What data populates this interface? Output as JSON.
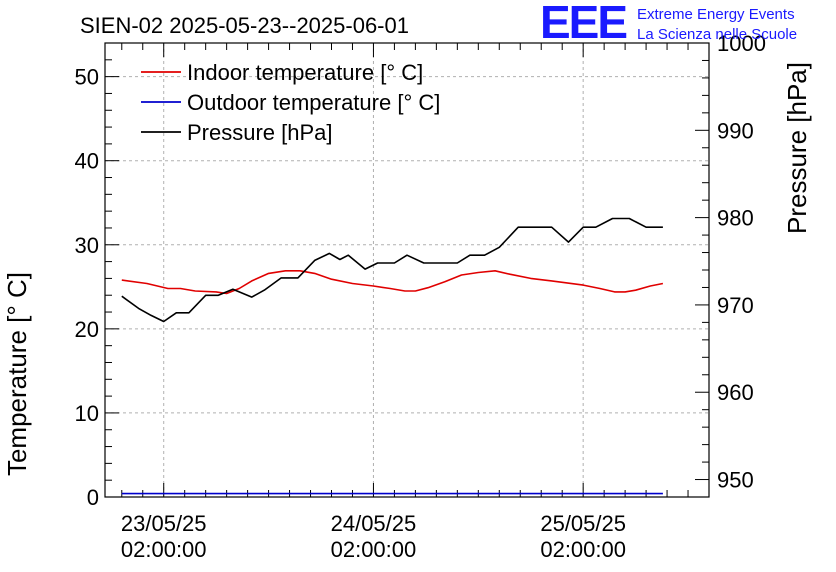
{
  "header": {
    "title": "SIEN-02 2025-05-23--2025-06-01",
    "logo_text": "EEE",
    "brand_line1": "Extreme Energy Events",
    "brand_line2": "La Scienza nelle Scuole"
  },
  "colors": {
    "indoor": "#e00000",
    "outdoor": "#0000cc",
    "pressure": "#000000",
    "grid": "#b0b0b0",
    "logo": "#1a1aff"
  },
  "chart_data": {
    "type": "line",
    "title": "SIEN-02 2025-05-23--2025-06-01",
    "ylabel": "Temperature [° C]",
    "y2label": "Pressure [hPa]",
    "xlabel": "",
    "ylim": [
      0,
      54
    ],
    "y2lim": [
      948,
      1000
    ],
    "xlim": [
      -0.28,
      2.6
    ],
    "yticks": [
      0,
      10,
      20,
      30,
      40,
      50
    ],
    "y2ticks": [
      950,
      960,
      970,
      980,
      990,
      1000
    ],
    "xticks": [
      {
        "x": 0,
        "line1": "23/05/25",
        "line2": "02:00:00"
      },
      {
        "x": 1,
        "line1": "24/05/25",
        "line2": "02:00:00"
      },
      {
        "x": 2,
        "line1": "25/05/25",
        "line2": "02:00:00"
      }
    ],
    "grid": true,
    "legend_position": "top-left",
    "series": [
      {
        "name": "Indoor temperature [° C]",
        "axis": "left",
        "color": "#e00000",
        "x": [
          -0.2,
          -0.08,
          0.02,
          0.08,
          0.15,
          0.25,
          0.3,
          0.36,
          0.42,
          0.5,
          0.58,
          0.65,
          0.72,
          0.8,
          0.9,
          1.0,
          1.08,
          1.15,
          1.2,
          1.26,
          1.34,
          1.42,
          1.5,
          1.58,
          1.65,
          1.75,
          1.85,
          2.0,
          2.08,
          2.15,
          2.2,
          2.25,
          2.32,
          2.38
        ],
        "values": [
          25.8,
          25.4,
          24.8,
          24.8,
          24.5,
          24.4,
          24.2,
          24.8,
          25.7,
          26.6,
          26.9,
          26.9,
          26.6,
          25.9,
          25.4,
          25.1,
          24.8,
          24.5,
          24.5,
          24.9,
          25.6,
          26.4,
          26.7,
          26.9,
          26.5,
          26.0,
          25.7,
          25.2,
          24.8,
          24.4,
          24.4,
          24.6,
          25.1,
          25.4
        ]
      },
      {
        "name": "Outdoor temperature [° C]",
        "axis": "left",
        "color": "#0000cc",
        "x": [
          -0.2,
          2.38
        ],
        "values": [
          0.4,
          0.4
        ]
      },
      {
        "name": "Pressure [hPa]",
        "axis": "right",
        "color": "#000000",
        "x": [
          -0.2,
          -0.12,
          -0.06,
          0.0,
          0.06,
          0.12,
          0.2,
          0.26,
          0.33,
          0.42,
          0.48,
          0.56,
          0.64,
          0.72,
          0.79,
          0.84,
          0.88,
          0.96,
          1.02,
          1.1,
          1.16,
          1.24,
          1.32,
          1.4,
          1.46,
          1.53,
          1.6,
          1.69,
          1.75,
          1.85,
          1.93,
          2.0,
          2.06,
          2.14,
          2.22,
          2.3,
          2.38
        ],
        "values": [
          971.0,
          969.6,
          968.8,
          968.1,
          969.1,
          969.1,
          971.1,
          971.1,
          971.8,
          970.9,
          971.7,
          973.1,
          973.1,
          975.1,
          975.9,
          975.2,
          975.7,
          974.1,
          974.8,
          974.8,
          975.7,
          974.8,
          974.8,
          974.8,
          975.7,
          975.7,
          976.6,
          978.9,
          978.9,
          978.9,
          977.2,
          978.9,
          978.9,
          979.9,
          979.9,
          978.9,
          978.9
        ]
      }
    ]
  }
}
